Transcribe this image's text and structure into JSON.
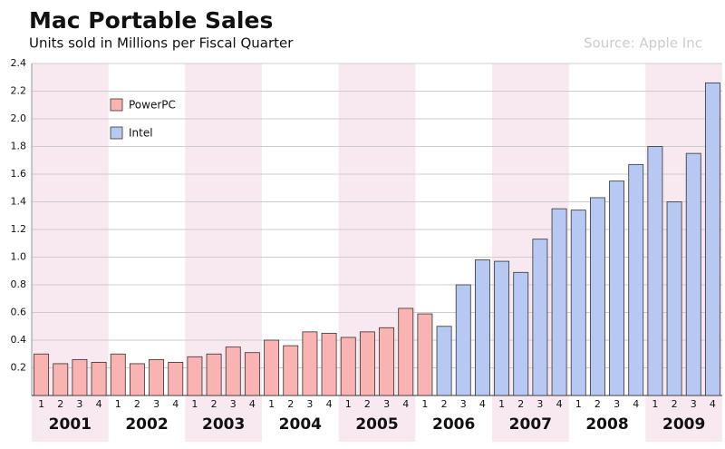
{
  "chart_data": {
    "type": "bar",
    "title": "Mac Portable Sales",
    "subtitle": "Units sold in Millions per Fiscal Quarter",
    "source": "Source: Apple Inc",
    "categories": [
      "1",
      "2",
      "3",
      "4",
      "1",
      "2",
      "3",
      "4",
      "1",
      "2",
      "3",
      "4",
      "1",
      "2",
      "3",
      "4",
      "1",
      "2",
      "3",
      "4",
      "1",
      "2",
      "3",
      "4",
      "1",
      "2",
      "3",
      "4",
      "1",
      "2",
      "3",
      "4",
      "1",
      "2",
      "3",
      "4"
    ],
    "years": [
      "2001",
      "2002",
      "2003",
      "2004",
      "2005",
      "2006",
      "2007",
      "2008",
      "2009"
    ],
    "series": [
      {
        "name": "PowerPC",
        "color": "#f9b3b3",
        "values": [
          0.3,
          0.23,
          0.26,
          0.24,
          0.3,
          0.23,
          0.26,
          0.24,
          0.28,
          0.3,
          0.35,
          0.31,
          0.4,
          0.36,
          0.46,
          0.45,
          0.42,
          0.46,
          0.49,
          0.63,
          0.59,
          null,
          null,
          null,
          null,
          null,
          null,
          null,
          null,
          null,
          null,
          null,
          null,
          null,
          null,
          null
        ]
      },
      {
        "name": "Intel",
        "color": "#b7c8f2",
        "values": [
          null,
          null,
          null,
          null,
          null,
          null,
          null,
          null,
          null,
          null,
          null,
          null,
          null,
          null,
          null,
          null,
          null,
          null,
          null,
          null,
          null,
          0.5,
          0.8,
          0.98,
          0.97,
          0.89,
          1.13,
          1.35,
          1.34,
          1.43,
          1.55,
          1.67,
          1.8,
          1.4,
          1.75,
          2.26
        ]
      }
    ],
    "ylim": [
      0,
      2.4
    ],
    "yticks": [
      0.2,
      0.4,
      0.6,
      0.8,
      {
        "value": 1.0,
        "label": "1.0"
      },
      1.2,
      1.4,
      1.6,
      1.8,
      {
        "value": 2.0,
        "label": "2.0"
      },
      2.2,
      2.4
    ],
    "grid": true,
    "band_color": "#f8e8ef"
  }
}
